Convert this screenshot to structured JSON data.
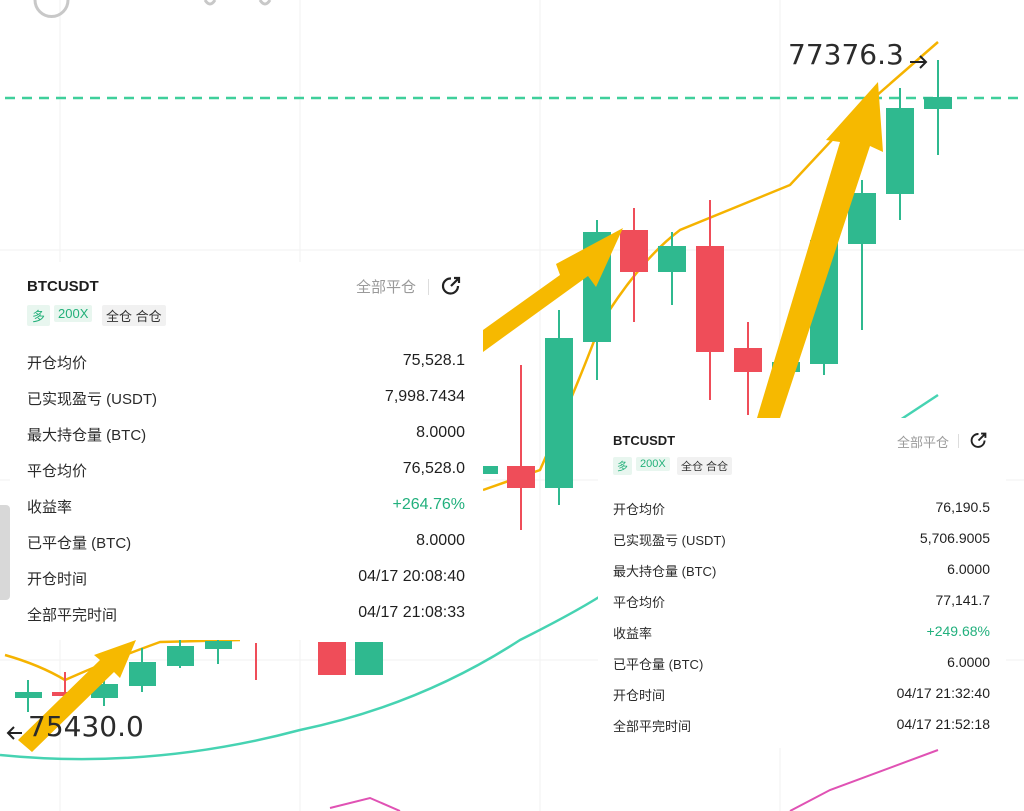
{
  "chart": {
    "last_price_label": "77376.3",
    "low_price_label": "75430.0",
    "colors": {
      "up": "#2fb98f",
      "down": "#ef4d59",
      "ma_orange": "#f5b300",
      "ma_teal": "#3fd1b0",
      "ma_pink": "#e052b4",
      "arrow": "#f6b900"
    }
  },
  "card1": {
    "symbol": "BTCUSDT",
    "close_all": "全部平仓",
    "tags": {
      "side": "多",
      "leverage": "200X",
      "margin": "全仓 合仓"
    },
    "rows": [
      {
        "label": "开仓均价",
        "value": "75,528.1"
      },
      {
        "label": "已实现盈亏 (USDT)",
        "value": "7,998.7434"
      },
      {
        "label": "最大持仓量 (BTC)",
        "value": "8.0000"
      },
      {
        "label": "平仓均价",
        "value": "76,528.0"
      },
      {
        "label": "收益率",
        "value": "+264.76%"
      },
      {
        "label": "已平仓量 (BTC)",
        "value": "8.0000"
      },
      {
        "label": "开仓时间",
        "value": "04/17 20:08:40"
      },
      {
        "label": "全部平完时间",
        "value": "04/17 21:08:33"
      }
    ]
  },
  "card2": {
    "symbol": "BTCUSDT",
    "close_all": "全部平仓",
    "tags": {
      "side": "多",
      "leverage": "200X",
      "margin": "全仓 合仓"
    },
    "rows": [
      {
        "label": "开仓均价",
        "value": "76,190.5"
      },
      {
        "label": "已实现盈亏 (USDT)",
        "value": "5,706.9005"
      },
      {
        "label": "最大持仓量 (BTC)",
        "value": "6.0000"
      },
      {
        "label": "平仓均价",
        "value": "77,141.7"
      },
      {
        "label": "收益率",
        "value": "+249.68%"
      },
      {
        "label": "已平仓量 (BTC)",
        "value": "6.0000"
      },
      {
        "label": "开仓时间",
        "value": "04/17 21:32:40"
      },
      {
        "label": "全部平完时间",
        "value": "04/17 21:52:18"
      }
    ]
  }
}
